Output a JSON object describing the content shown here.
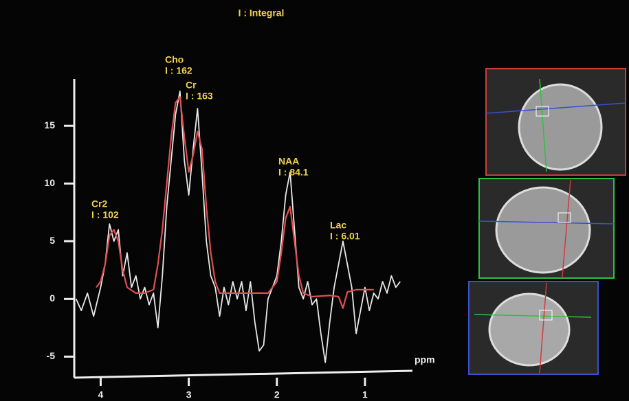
{
  "chart_data": {
    "type": "line",
    "title": "I : Integral",
    "x_label": "ppm",
    "xlim": [
      4.3,
      0.5
    ],
    "ylim": [
      -7,
      19
    ],
    "xticks": [
      4,
      3,
      2,
      1
    ],
    "yticks": [
      15,
      10,
      5,
      0,
      -5
    ],
    "peaks": [
      {
        "name": "Cr2",
        "integral": "I : 102"
      },
      {
        "name": "Cho",
        "integral": "I : 162"
      },
      {
        "name": "Cr",
        "integral": "I : 163"
      },
      {
        "name": "NAA",
        "integral": "I : 84.1"
      },
      {
        "name": "Lac",
        "integral": "I : 6.01"
      }
    ],
    "series": [
      {
        "color": "#e8e8e8",
        "x": [
          4.28,
          4.22,
          4.15,
          4.08,
          4.0,
          3.95,
          3.9,
          3.85,
          3.8,
          3.75,
          3.7,
          3.65,
          3.6,
          3.55,
          3.5,
          3.45,
          3.4,
          3.35,
          3.3,
          3.25,
          3.2,
          3.15,
          3.1,
          3.05,
          3.0,
          2.95,
          2.9,
          2.85,
          2.8,
          2.75,
          2.7,
          2.65,
          2.6,
          2.55,
          2.5,
          2.45,
          2.4,
          2.35,
          2.3,
          2.25,
          2.2,
          2.15,
          2.1,
          2.05,
          2.0,
          1.95,
          1.9,
          1.85,
          1.8,
          1.75,
          1.7,
          1.65,
          1.6,
          1.55,
          1.5,
          1.45,
          1.4,
          1.35,
          1.3,
          1.25,
          1.2,
          1.15,
          1.1,
          1.05,
          1.0,
          0.95,
          0.9,
          0.85,
          0.8,
          0.75,
          0.7,
          0.65,
          0.6
        ],
        "values": [
          0,
          -1,
          0.5,
          -1.5,
          1,
          3,
          6.5,
          5,
          6,
          2,
          4,
          1,
          2,
          0,
          1,
          -0.5,
          0.5,
          -2.5,
          2,
          8,
          12,
          16,
          18,
          12,
          9,
          13,
          16.5,
          11,
          5,
          2,
          1,
          -1.5,
          1,
          -0.5,
          1.5,
          0,
          1.5,
          -1,
          1.5,
          -2,
          -4.5,
          -4,
          0,
          1,
          2,
          5,
          9,
          11,
          6,
          1,
          0,
          1.5,
          -0.5,
          0,
          -3,
          -5.5,
          -2,
          1,
          3,
          5,
          3,
          1,
          -3,
          -1,
          1,
          -1,
          0.5,
          0,
          1.5,
          0.5,
          2,
          1,
          1.5
        ]
      },
      {
        "color": "#e05050",
        "x": [
          4.05,
          4.0,
          3.95,
          3.9,
          3.85,
          3.8,
          3.75,
          3.7,
          3.6,
          3.5,
          3.4,
          3.35,
          3.3,
          3.25,
          3.2,
          3.15,
          3.1,
          3.05,
          3.0,
          2.95,
          2.9,
          2.85,
          2.8,
          2.75,
          2.7,
          2.65,
          2.5,
          2.3,
          2.1,
          2.0,
          1.95,
          1.9,
          1.85,
          1.8,
          1.75,
          1.7,
          1.6,
          1.4,
          1.3,
          1.25,
          1.2,
          1.1,
          0.9
        ],
        "values": [
          1,
          1.5,
          3,
          5.5,
          6,
          5,
          2.5,
          1,
          0.5,
          0.5,
          0.8,
          3,
          6,
          10,
          14,
          17,
          17.5,
          14,
          11,
          12.5,
          14.5,
          13,
          8,
          4,
          1.5,
          0.5,
          0.5,
          0.5,
          0.5,
          1.5,
          4,
          7,
          8,
          5,
          2,
          0.5,
          0.2,
          0.3,
          0.2,
          -0.8,
          0.6,
          0.8,
          0.8
        ]
      }
    ]
  }
}
